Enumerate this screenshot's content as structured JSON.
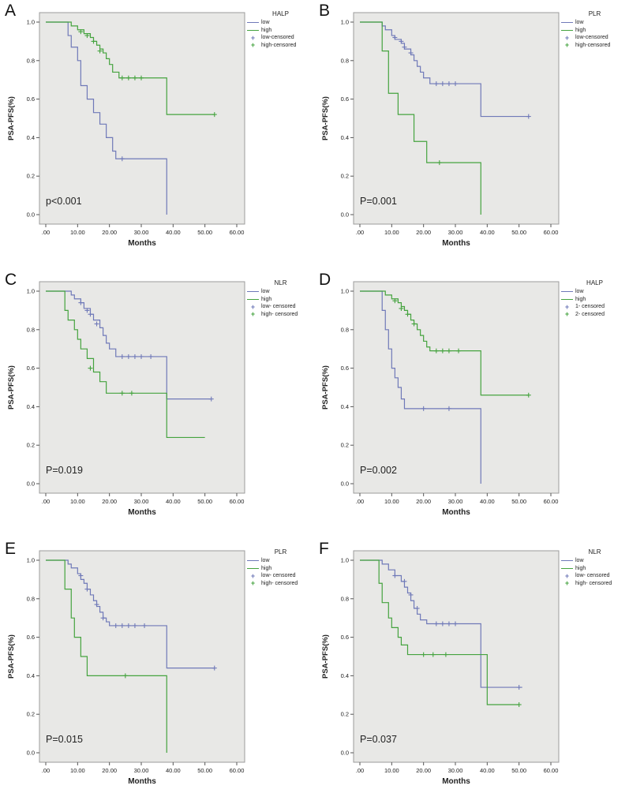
{
  "colors": {
    "low": "#6f79b8",
    "high": "#45a33f",
    "plot_bg": "#e8e8e6",
    "box_border": "#9b9b9b",
    "tick": "#555555"
  },
  "icons": {
    "censored_marker": "+"
  },
  "axes": {
    "x_label": "Months",
    "y_label": "PSA-PFS(%)",
    "x_ticks": [
      ".00",
      "10.00",
      "20.00",
      "30.00",
      "40.00",
      "50.00",
      "60.00"
    ],
    "y_ticks": [
      "0.0",
      "0.2",
      "0.4",
      "0.6",
      "0.8",
      "1.0"
    ],
    "xlim": [
      0,
      60
    ],
    "ylim": [
      0,
      1
    ]
  },
  "chart_data": [
    {
      "type": "line",
      "step": true,
      "label": "A",
      "legend_title": "HALP",
      "p_value": "p<0.001",
      "x_label": "Months",
      "y_label": "PSA-PFS(%)",
      "xlim": [
        0,
        60
      ],
      "ylim": [
        0,
        1
      ],
      "legend_items": [
        "low",
        "high",
        "low-censored",
        "high-censored"
      ],
      "series": {
        "low": {
          "name": "low",
          "steps": [
            [
              0,
              1.0
            ],
            [
              7,
              0.93
            ],
            [
              8,
              0.87
            ],
            [
              10,
              0.8
            ],
            [
              11,
              0.67
            ],
            [
              13,
              0.6
            ],
            [
              15,
              0.53
            ],
            [
              17,
              0.47
            ],
            [
              19,
              0.4
            ],
            [
              21,
              0.33
            ],
            [
              22,
              0.29
            ],
            [
              38,
              0.0
            ]
          ],
          "end": 38,
          "censors": [
            [
              24,
              0.29
            ]
          ]
        },
        "high": {
          "name": "high",
          "steps": [
            [
              0,
              1.0
            ],
            [
              8,
              0.98
            ],
            [
              10,
              0.96
            ],
            [
              12,
              0.94
            ],
            [
              14,
              0.92
            ],
            [
              15,
              0.9
            ],
            [
              16,
              0.88
            ],
            [
              17,
              0.86
            ],
            [
              18,
              0.84
            ],
            [
              19,
              0.81
            ],
            [
              20,
              0.78
            ],
            [
              21,
              0.74
            ],
            [
              23,
              0.71
            ],
            [
              38,
              0.52
            ]
          ],
          "end": 53,
          "censors": [
            [
              11,
              0.95
            ],
            [
              13,
              0.93
            ],
            [
              15,
              0.9
            ],
            [
              17,
              0.85
            ],
            [
              24,
              0.71
            ],
            [
              26,
              0.71
            ],
            [
              28,
              0.71
            ],
            [
              30,
              0.71
            ],
            [
              53,
              0.52
            ]
          ]
        }
      }
    },
    {
      "type": "line",
      "step": true,
      "label": "B",
      "legend_title": "PLR",
      "p_value": "P=0.001",
      "x_label": "Months",
      "y_label": "PSA-PFS(%)",
      "xlim": [
        0,
        60
      ],
      "ylim": [
        0,
        1
      ],
      "legend_items": [
        "low",
        "high",
        "low-censored",
        "high-censored"
      ],
      "series": {
        "low": {
          "name": "low",
          "steps": [
            [
              0,
              1.0
            ],
            [
              7,
              0.98
            ],
            [
              8,
              0.96
            ],
            [
              10,
              0.93
            ],
            [
              11,
              0.91
            ],
            [
              13,
              0.89
            ],
            [
              14,
              0.86
            ],
            [
              16,
              0.83
            ],
            [
              17,
              0.8
            ],
            [
              18,
              0.77
            ],
            [
              19,
              0.74
            ],
            [
              20,
              0.71
            ],
            [
              22,
              0.68
            ],
            [
              38,
              0.51
            ]
          ],
          "end": 53,
          "censors": [
            [
              11,
              0.92
            ],
            [
              13,
              0.9
            ],
            [
              14,
              0.87
            ],
            [
              16,
              0.84
            ],
            [
              24,
              0.68
            ],
            [
              26,
              0.68
            ],
            [
              28,
              0.68
            ],
            [
              30,
              0.68
            ],
            [
              53,
              0.51
            ]
          ]
        },
        "high": {
          "name": "high",
          "steps": [
            [
              0,
              1.0
            ],
            [
              7,
              0.85
            ],
            [
              9,
              0.63
            ],
            [
              12,
              0.52
            ],
            [
              17,
              0.38
            ],
            [
              21,
              0.27
            ],
            [
              38,
              0.0
            ]
          ],
          "end": 38,
          "censors": [
            [
              25,
              0.27
            ]
          ]
        }
      }
    },
    {
      "type": "line",
      "step": true,
      "label": "C",
      "legend_title": "NLR",
      "p_value": "P=0.019",
      "x_label": "Months",
      "y_label": "PSA-PFS(%)",
      "xlim": [
        0,
        60
      ],
      "ylim": [
        0,
        1
      ],
      "legend_items": [
        "low",
        "high",
        "low- censored",
        "high- censored"
      ],
      "series": {
        "low": {
          "name": "low",
          "steps": [
            [
              0,
              1.0
            ],
            [
              8,
              0.98
            ],
            [
              9,
              0.96
            ],
            [
              11,
              0.94
            ],
            [
              12,
              0.91
            ],
            [
              14,
              0.88
            ],
            [
              15,
              0.85
            ],
            [
              17,
              0.81
            ],
            [
              18,
              0.77
            ],
            [
              19,
              0.73
            ],
            [
              20,
              0.7
            ],
            [
              22,
              0.66
            ],
            [
              38,
              0.44
            ]
          ],
          "end": 52,
          "censors": [
            [
              11,
              0.94
            ],
            [
              13,
              0.9
            ],
            [
              14,
              0.88
            ],
            [
              16,
              0.83
            ],
            [
              24,
              0.66
            ],
            [
              26,
              0.66
            ],
            [
              28,
              0.66
            ],
            [
              30,
              0.66
            ],
            [
              33,
              0.66
            ],
            [
              52,
              0.44
            ]
          ]
        },
        "high": {
          "name": "high",
          "steps": [
            [
              0,
              1.0
            ],
            [
              6,
              0.9
            ],
            [
              7,
              0.85
            ],
            [
              9,
              0.8
            ],
            [
              10,
              0.75
            ],
            [
              11,
              0.7
            ],
            [
              13,
              0.65
            ],
            [
              15,
              0.58
            ],
            [
              17,
              0.53
            ],
            [
              19,
              0.47
            ],
            [
              38,
              0.24
            ]
          ],
          "end": 50,
          "censors": [
            [
              14,
              0.6
            ],
            [
              24,
              0.47
            ],
            [
              27,
              0.47
            ]
          ]
        }
      }
    },
    {
      "type": "line",
      "step": true,
      "label": "D",
      "legend_title": "HALP",
      "p_value": "P=0.002",
      "x_label": "Months",
      "y_label": "PSA-PFS(%)",
      "xlim": [
        0,
        60
      ],
      "ylim": [
        0,
        1
      ],
      "legend_items": [
        "low",
        "high",
        "1- censored",
        "2- censored"
      ],
      "series": {
        "low": {
          "name": "low",
          "steps": [
            [
              0,
              1.0
            ],
            [
              7,
              0.9
            ],
            [
              8,
              0.8
            ],
            [
              9,
              0.7
            ],
            [
              10,
              0.6
            ],
            [
              11,
              0.55
            ],
            [
              12,
              0.5
            ],
            [
              13,
              0.44
            ],
            [
              14,
              0.39
            ],
            [
              38,
              0.0
            ]
          ],
          "end": 38,
          "censors": [
            [
              20,
              0.39
            ],
            [
              28,
              0.39
            ]
          ]
        },
        "high": {
          "name": "high",
          "steps": [
            [
              0,
              1.0
            ],
            [
              8,
              0.98
            ],
            [
              10,
              0.96
            ],
            [
              12,
              0.94
            ],
            [
              13,
              0.92
            ],
            [
              14,
              0.9
            ],
            [
              15,
              0.88
            ],
            [
              16,
              0.85
            ],
            [
              17,
              0.83
            ],
            [
              18,
              0.8
            ],
            [
              19,
              0.77
            ],
            [
              20,
              0.74
            ],
            [
              21,
              0.71
            ],
            [
              22,
              0.69
            ],
            [
              38,
              0.46
            ]
          ],
          "end": 53,
          "censors": [
            [
              11,
              0.95
            ],
            [
              13,
              0.91
            ],
            [
              15,
              0.88
            ],
            [
              17,
              0.83
            ],
            [
              24,
              0.69
            ],
            [
              26,
              0.69
            ],
            [
              28,
              0.69
            ],
            [
              31,
              0.69
            ],
            [
              53,
              0.46
            ]
          ]
        }
      }
    },
    {
      "type": "line",
      "step": true,
      "label": "E",
      "legend_title": "PLR",
      "p_value": "P=0.015",
      "x_label": "Months",
      "y_label": "PSA-PFS(%)",
      "xlim": [
        0,
        60
      ],
      "ylim": [
        0,
        1
      ],
      "legend_items": [
        "low",
        "high",
        "low- censored",
        "high- censored"
      ],
      "series": {
        "low": {
          "name": "low",
          "steps": [
            [
              0,
              1.0
            ],
            [
              7,
              0.98
            ],
            [
              8,
              0.96
            ],
            [
              10,
              0.93
            ],
            [
              11,
              0.9
            ],
            [
              12,
              0.88
            ],
            [
              13,
              0.85
            ],
            [
              14,
              0.82
            ],
            [
              15,
              0.79
            ],
            [
              16,
              0.76
            ],
            [
              17,
              0.73
            ],
            [
              18,
              0.7
            ],
            [
              19,
              0.68
            ],
            [
              20,
              0.66
            ],
            [
              38,
              0.44
            ]
          ],
          "end": 53,
          "censors": [
            [
              11,
              0.92
            ],
            [
              13,
              0.85
            ],
            [
              16,
              0.77
            ],
            [
              18,
              0.7
            ],
            [
              22,
              0.66
            ],
            [
              24,
              0.66
            ],
            [
              26,
              0.66
            ],
            [
              28,
              0.66
            ],
            [
              31,
              0.66
            ],
            [
              53,
              0.44
            ]
          ]
        },
        "high": {
          "name": "high",
          "steps": [
            [
              0,
              1.0
            ],
            [
              6,
              0.85
            ],
            [
              8,
              0.7
            ],
            [
              9,
              0.6
            ],
            [
              11,
              0.5
            ],
            [
              13,
              0.4
            ],
            [
              38,
              0.0
            ]
          ],
          "end": 38,
          "censors": [
            [
              25,
              0.4
            ]
          ]
        }
      }
    },
    {
      "type": "line",
      "step": true,
      "label": "F",
      "legend_title": "NLR",
      "p_value": "P=0.037",
      "x_label": "Months",
      "y_label": "PSA-PFS(%)",
      "xlim": [
        0,
        60
      ],
      "ylim": [
        0,
        1
      ],
      "legend_items": [
        "low",
        "high",
        "low- censored",
        "high- censored"
      ],
      "series": {
        "low": {
          "name": "low",
          "steps": [
            [
              0,
              1.0
            ],
            [
              7,
              0.98
            ],
            [
              9,
              0.95
            ],
            [
              11,
              0.92
            ],
            [
              13,
              0.89
            ],
            [
              14,
              0.86
            ],
            [
              15,
              0.83
            ],
            [
              16,
              0.79
            ],
            [
              17,
              0.75
            ],
            [
              18,
              0.72
            ],
            [
              19,
              0.69
            ],
            [
              21,
              0.67
            ],
            [
              38,
              0.34
            ]
          ],
          "end": 51,
          "censors": [
            [
              11,
              0.92
            ],
            [
              14,
              0.89
            ],
            [
              16,
              0.82
            ],
            [
              18,
              0.75
            ],
            [
              24,
              0.67
            ],
            [
              26,
              0.67
            ],
            [
              28,
              0.67
            ],
            [
              30,
              0.67
            ],
            [
              50,
              0.34
            ]
          ]
        },
        "high": {
          "name": "high",
          "steps": [
            [
              0,
              1.0
            ],
            [
              6,
              0.88
            ],
            [
              7,
              0.78
            ],
            [
              9,
              0.7
            ],
            [
              10,
              0.65
            ],
            [
              12,
              0.6
            ],
            [
              13,
              0.56
            ],
            [
              15,
              0.51
            ],
            [
              40,
              0.25
            ]
          ],
          "end": 50,
          "censors": [
            [
              20,
              0.51
            ],
            [
              23,
              0.51
            ],
            [
              27,
              0.51
            ],
            [
              50,
              0.25
            ]
          ]
        }
      }
    }
  ]
}
